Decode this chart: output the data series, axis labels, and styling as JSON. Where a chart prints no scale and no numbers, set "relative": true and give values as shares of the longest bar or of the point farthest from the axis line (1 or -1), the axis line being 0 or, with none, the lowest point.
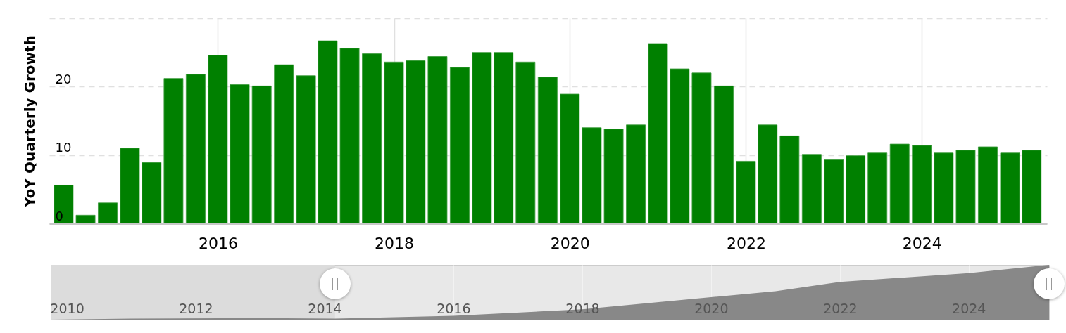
{
  "chart_data": [
    {
      "type": "bar",
      "ylabel": "YoY Quarterly Growth",
      "x": [
        "2014-04",
        "2014-07",
        "2014-10",
        "2015-01",
        "2015-04",
        "2015-07",
        "2015-10",
        "2016-01",
        "2016-04",
        "2016-07",
        "2016-10",
        "2017-01",
        "2017-04",
        "2017-07",
        "2017-10",
        "2018-01",
        "2018-04",
        "2018-07",
        "2018-10",
        "2019-01",
        "2019-04",
        "2019-07",
        "2019-10",
        "2020-01",
        "2020-04",
        "2020-07",
        "2020-10",
        "2021-01",
        "2021-04",
        "2021-07",
        "2021-10",
        "2022-01",
        "2022-04",
        "2022-07",
        "2022-10",
        "2023-01",
        "2023-04",
        "2023-07",
        "2023-10",
        "2024-01",
        "2024-04",
        "2024-07",
        "2024-10",
        "2025-01",
        "2025-04"
      ],
      "series": [
        {
          "color": "#008000",
          "values": [
            5.6,
            1.2,
            3.0,
            11.0,
            8.9,
            21.2,
            21.8,
            24.6,
            20.3,
            20.1,
            23.2,
            21.6,
            26.7,
            25.6,
            24.8,
            23.6,
            23.8,
            24.4,
            22.8,
            25.0,
            25.0,
            23.6,
            21.4,
            18.9,
            14.0,
            13.8,
            14.4,
            26.3,
            22.6,
            22.0,
            20.1,
            9.1,
            14.4,
            12.8,
            10.1,
            9.3,
            9.9,
            10.3,
            11.6,
            11.4,
            10.3,
            10.7,
            11.2,
            10.3,
            10.7
          ]
        }
      ],
      "xlim": [
        "2014-02-15",
        "2025-05-20"
      ],
      "xticks": [
        "2016",
        "2018",
        "2020",
        "2022",
        "2024"
      ],
      "ylim": [
        0,
        30
      ],
      "yticks": [
        0,
        10,
        20,
        {
          "value": 30,
          "label": null
        }
      ],
      "grid": true
    },
    {
      "type": "area",
      "relative": true,
      "x": [
        "2009-10",
        "2011-01",
        "2013-01",
        "2014-03",
        "2016-01",
        "2018-01",
        "2020-01",
        "2021-01",
        "2022-01",
        "2024-01",
        "2025-04"
      ],
      "series": [
        {
          "color": "#888888",
          "values": [
            0,
            0.02,
            0.03,
            0.02,
            0.07,
            0.19,
            0.41,
            0.52,
            0.69,
            0.85,
            1
          ]
        }
      ],
      "xlim": [
        "2009-10",
        "2025-04"
      ],
      "xticks": [
        "2010",
        "2012",
        "2014",
        "2016",
        "2018",
        "2020",
        "2022",
        "2024"
      ],
      "bands": [
        {
          "axis": "x",
          "from": "2009-10",
          "to": "2014-03",
          "color": "#dcdcdc"
        }
      ],
      "grid": "x"
    }
  ]
}
